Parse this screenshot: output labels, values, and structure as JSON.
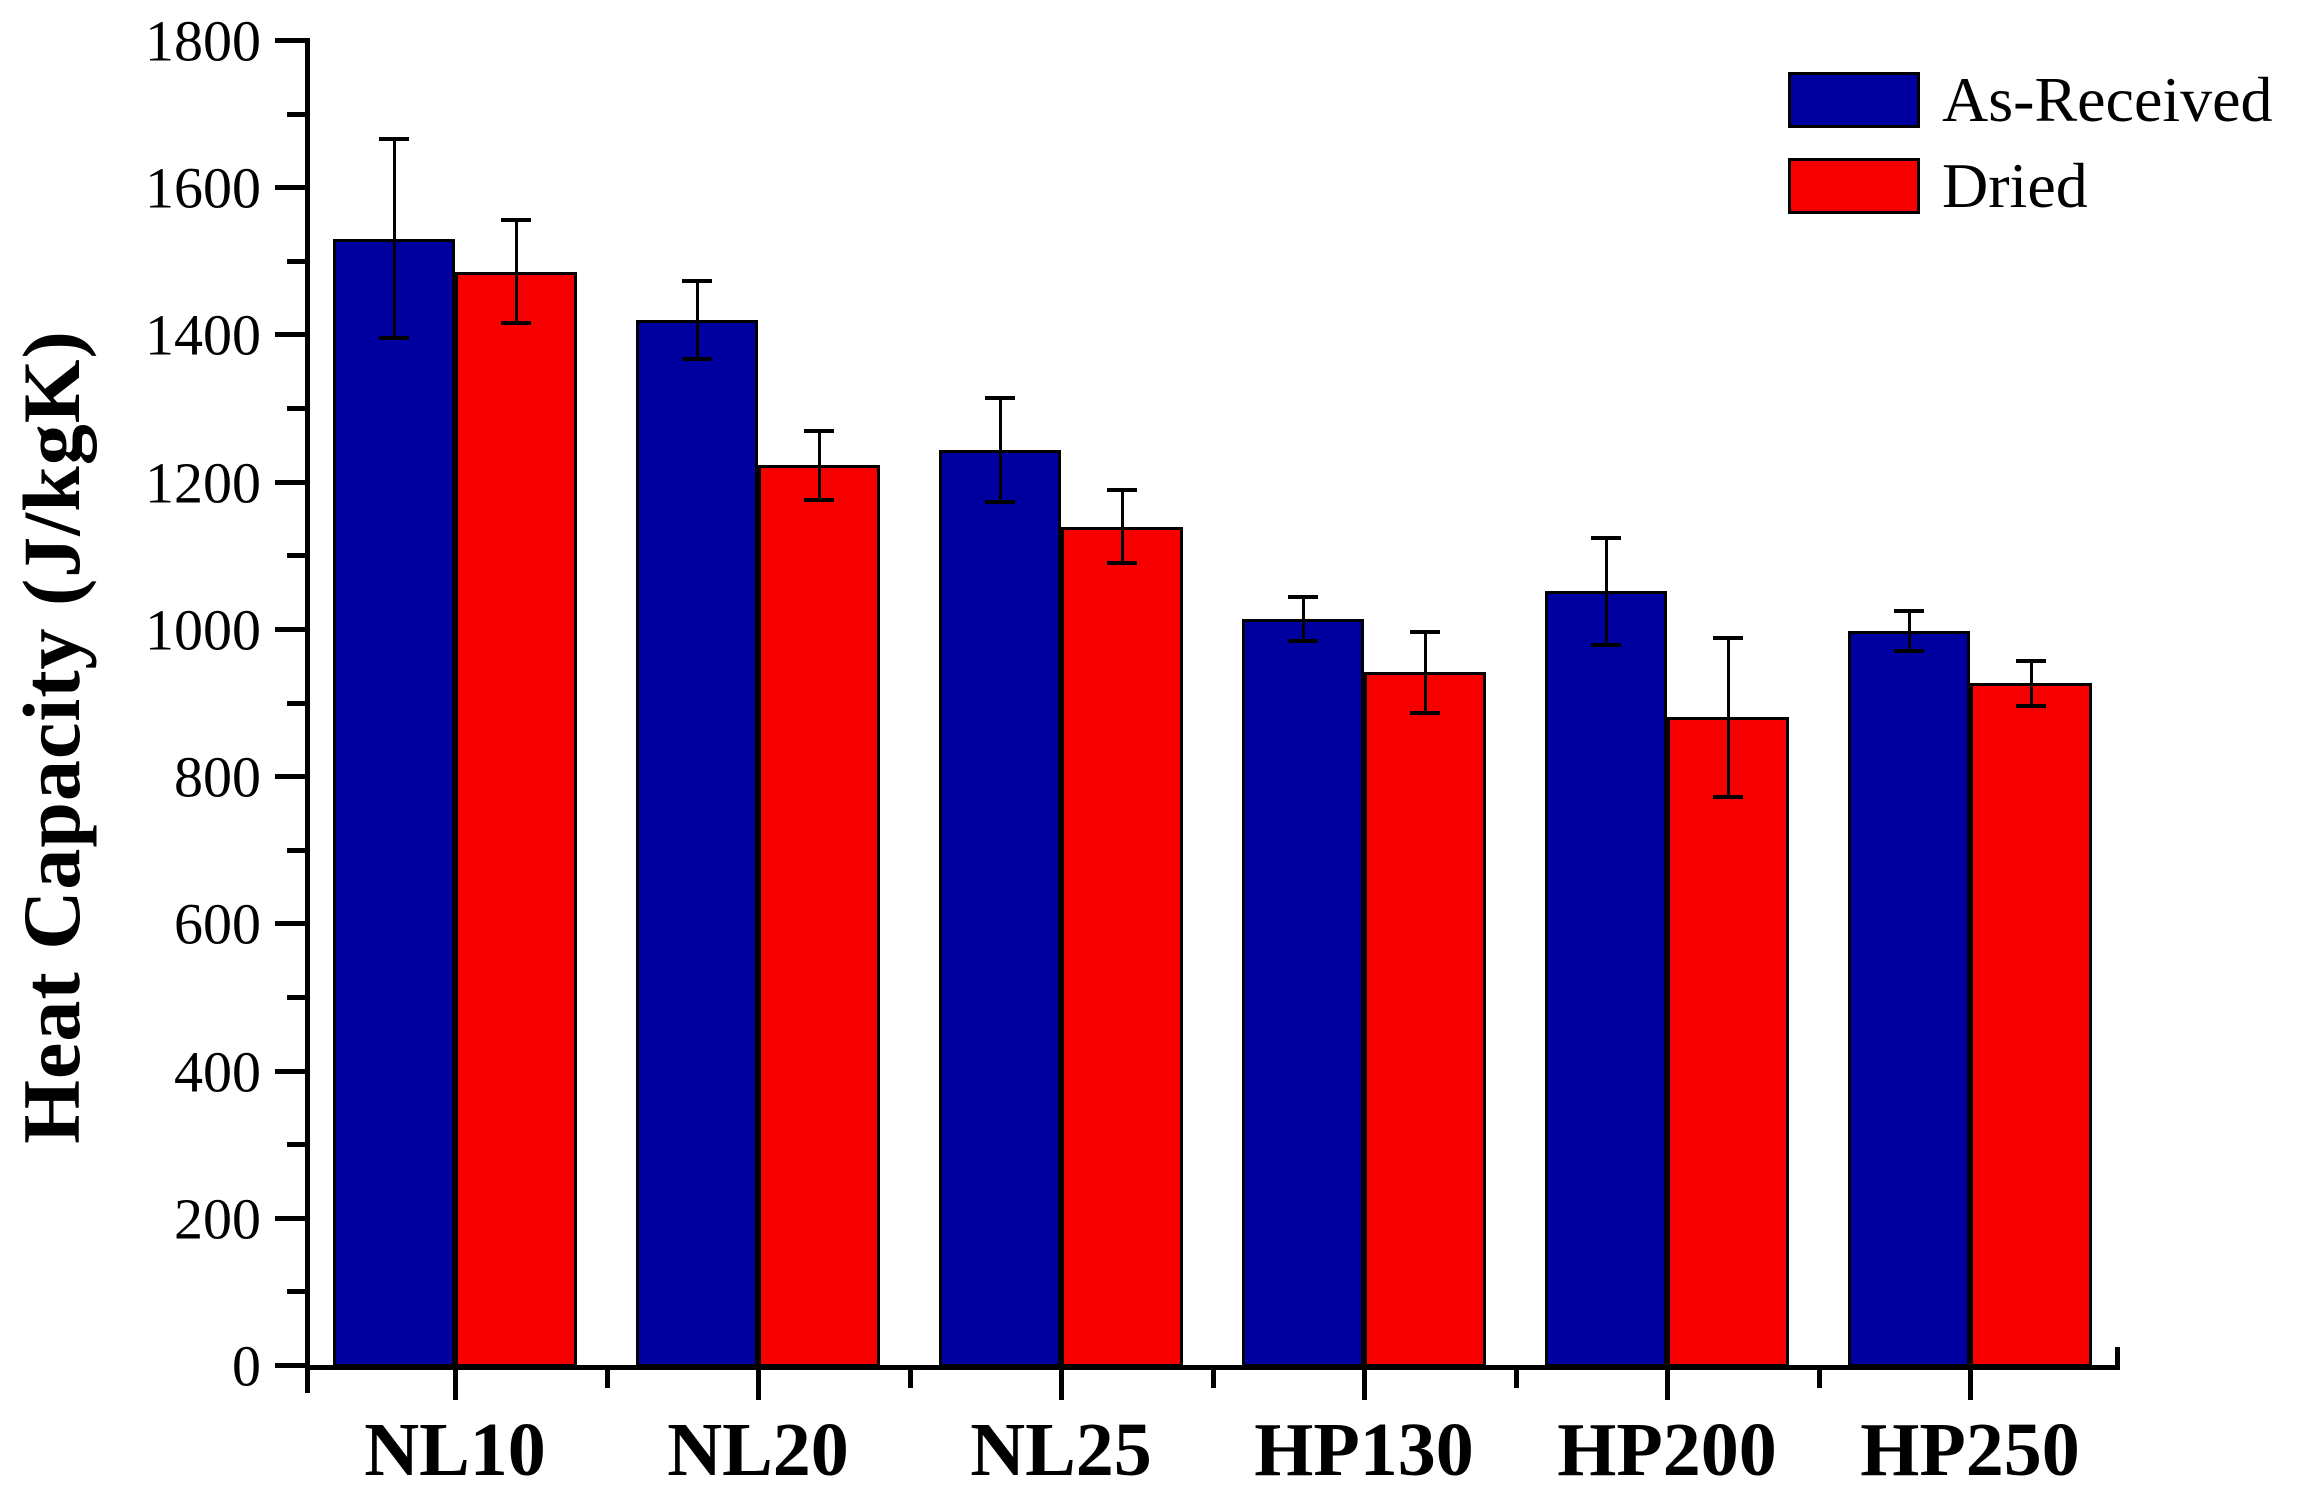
{
  "chart_data": {
    "type": "bar",
    "title": "",
    "xlabel": "",
    "ylabel": "Heat Capacity (J/kgK)",
    "categories": [
      "NL10",
      "NL20",
      "NL25",
      "HP130",
      "HP200",
      "HP250"
    ],
    "series": [
      {
        "name": "As-Received",
        "color": "#0000A0",
        "values": [
          1530,
          1420,
          1243,
          1013,
          1051,
          997
        ],
        "errors": [
          135,
          53,
          70,
          30,
          73,
          27
        ]
      },
      {
        "name": "Dried",
        "color": "#F80000",
        "values": [
          1485,
          1222,
          1139,
          941,
          880,
          926
        ],
        "errors": [
          70,
          47,
          50,
          55,
          108,
          31
        ]
      }
    ],
    "ylim": [
      0,
      1800
    ],
    "y_major_ticks": [
      0,
      200,
      400,
      600,
      800,
      1000,
      1200,
      1400,
      1600,
      1800
    ],
    "y_minor_step": 100,
    "grid": "off",
    "legend_position": "top-right",
    "axis_color": "#000000",
    "background_color": "#FFFFFF"
  }
}
